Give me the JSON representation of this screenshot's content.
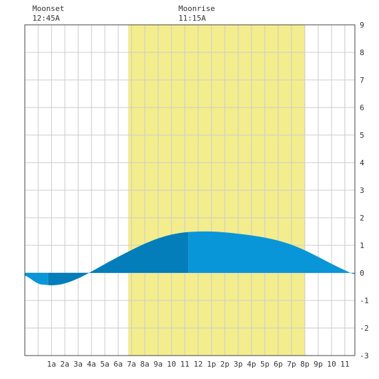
{
  "moon_events": [
    {
      "label": "Moonset",
      "time": "12:45A",
      "hour": 0.75
    },
    {
      "label": "Moonrise",
      "time": "11:15A",
      "hour": 11.25
    }
  ],
  "chart_data": {
    "type": "area",
    "title": "",
    "xlabel": "",
    "ylabel": "",
    "xlim": [
      -1,
      23.75
    ],
    "ylim": [
      -3,
      9
    ],
    "grid": true,
    "x_tick_labels": [
      "1a",
      "2a",
      "3a",
      "4a",
      "5a",
      "6a",
      "7a",
      "8a",
      "9a",
      "10",
      "11",
      "12",
      "1p",
      "2p",
      "3p",
      "4p",
      "5p",
      "6p",
      "7p",
      "8p",
      "9p",
      "10",
      "11"
    ],
    "y_tick_labels": [
      "-3",
      "-2",
      "-1",
      "0",
      "1",
      "2",
      "3",
      "4",
      "5",
      "6",
      "7",
      "8",
      "9"
    ],
    "daylight": {
      "start_hour": 6.75,
      "end_hour": 20.0
    },
    "tide_extrema": [
      {
        "hour": 1.0,
        "height": -0.45
      },
      {
        "hour": 13.3,
        "height": 1.5
      },
      {
        "hour": 23.7,
        "height": -0.05
      }
    ],
    "tide_series": {
      "x": [
        -1,
        0,
        0.5,
        1,
        1.5,
        2,
        3,
        4,
        5,
        6,
        7,
        8,
        9,
        10,
        11,
        12,
        13,
        14,
        15,
        16,
        17,
        18,
        19,
        20,
        21,
        22,
        23,
        23.75
      ],
      "y": [
        -0.1,
        -0.38,
        -0.43,
        -0.45,
        -0.43,
        -0.38,
        -0.2,
        0.05,
        0.32,
        0.58,
        0.83,
        1.06,
        1.25,
        1.39,
        1.47,
        1.5,
        1.5,
        1.47,
        1.42,
        1.36,
        1.28,
        1.17,
        1.02,
        0.82,
        0.58,
        0.33,
        0.1,
        -0.05
      ]
    },
    "shade_bands": [
      {
        "from_hour": -1,
        "to_hour": 0.75,
        "color": "#0996d8"
      },
      {
        "from_hour": 0.75,
        "to_hour": 11.25,
        "color": "#037ebb"
      },
      {
        "from_hour": 11.25,
        "to_hour": 23.75,
        "color": "#0996d8"
      }
    ],
    "colors": {
      "daylight": "#f3ed8d",
      "grid": "#cccccc",
      "frame": "#444444"
    }
  }
}
